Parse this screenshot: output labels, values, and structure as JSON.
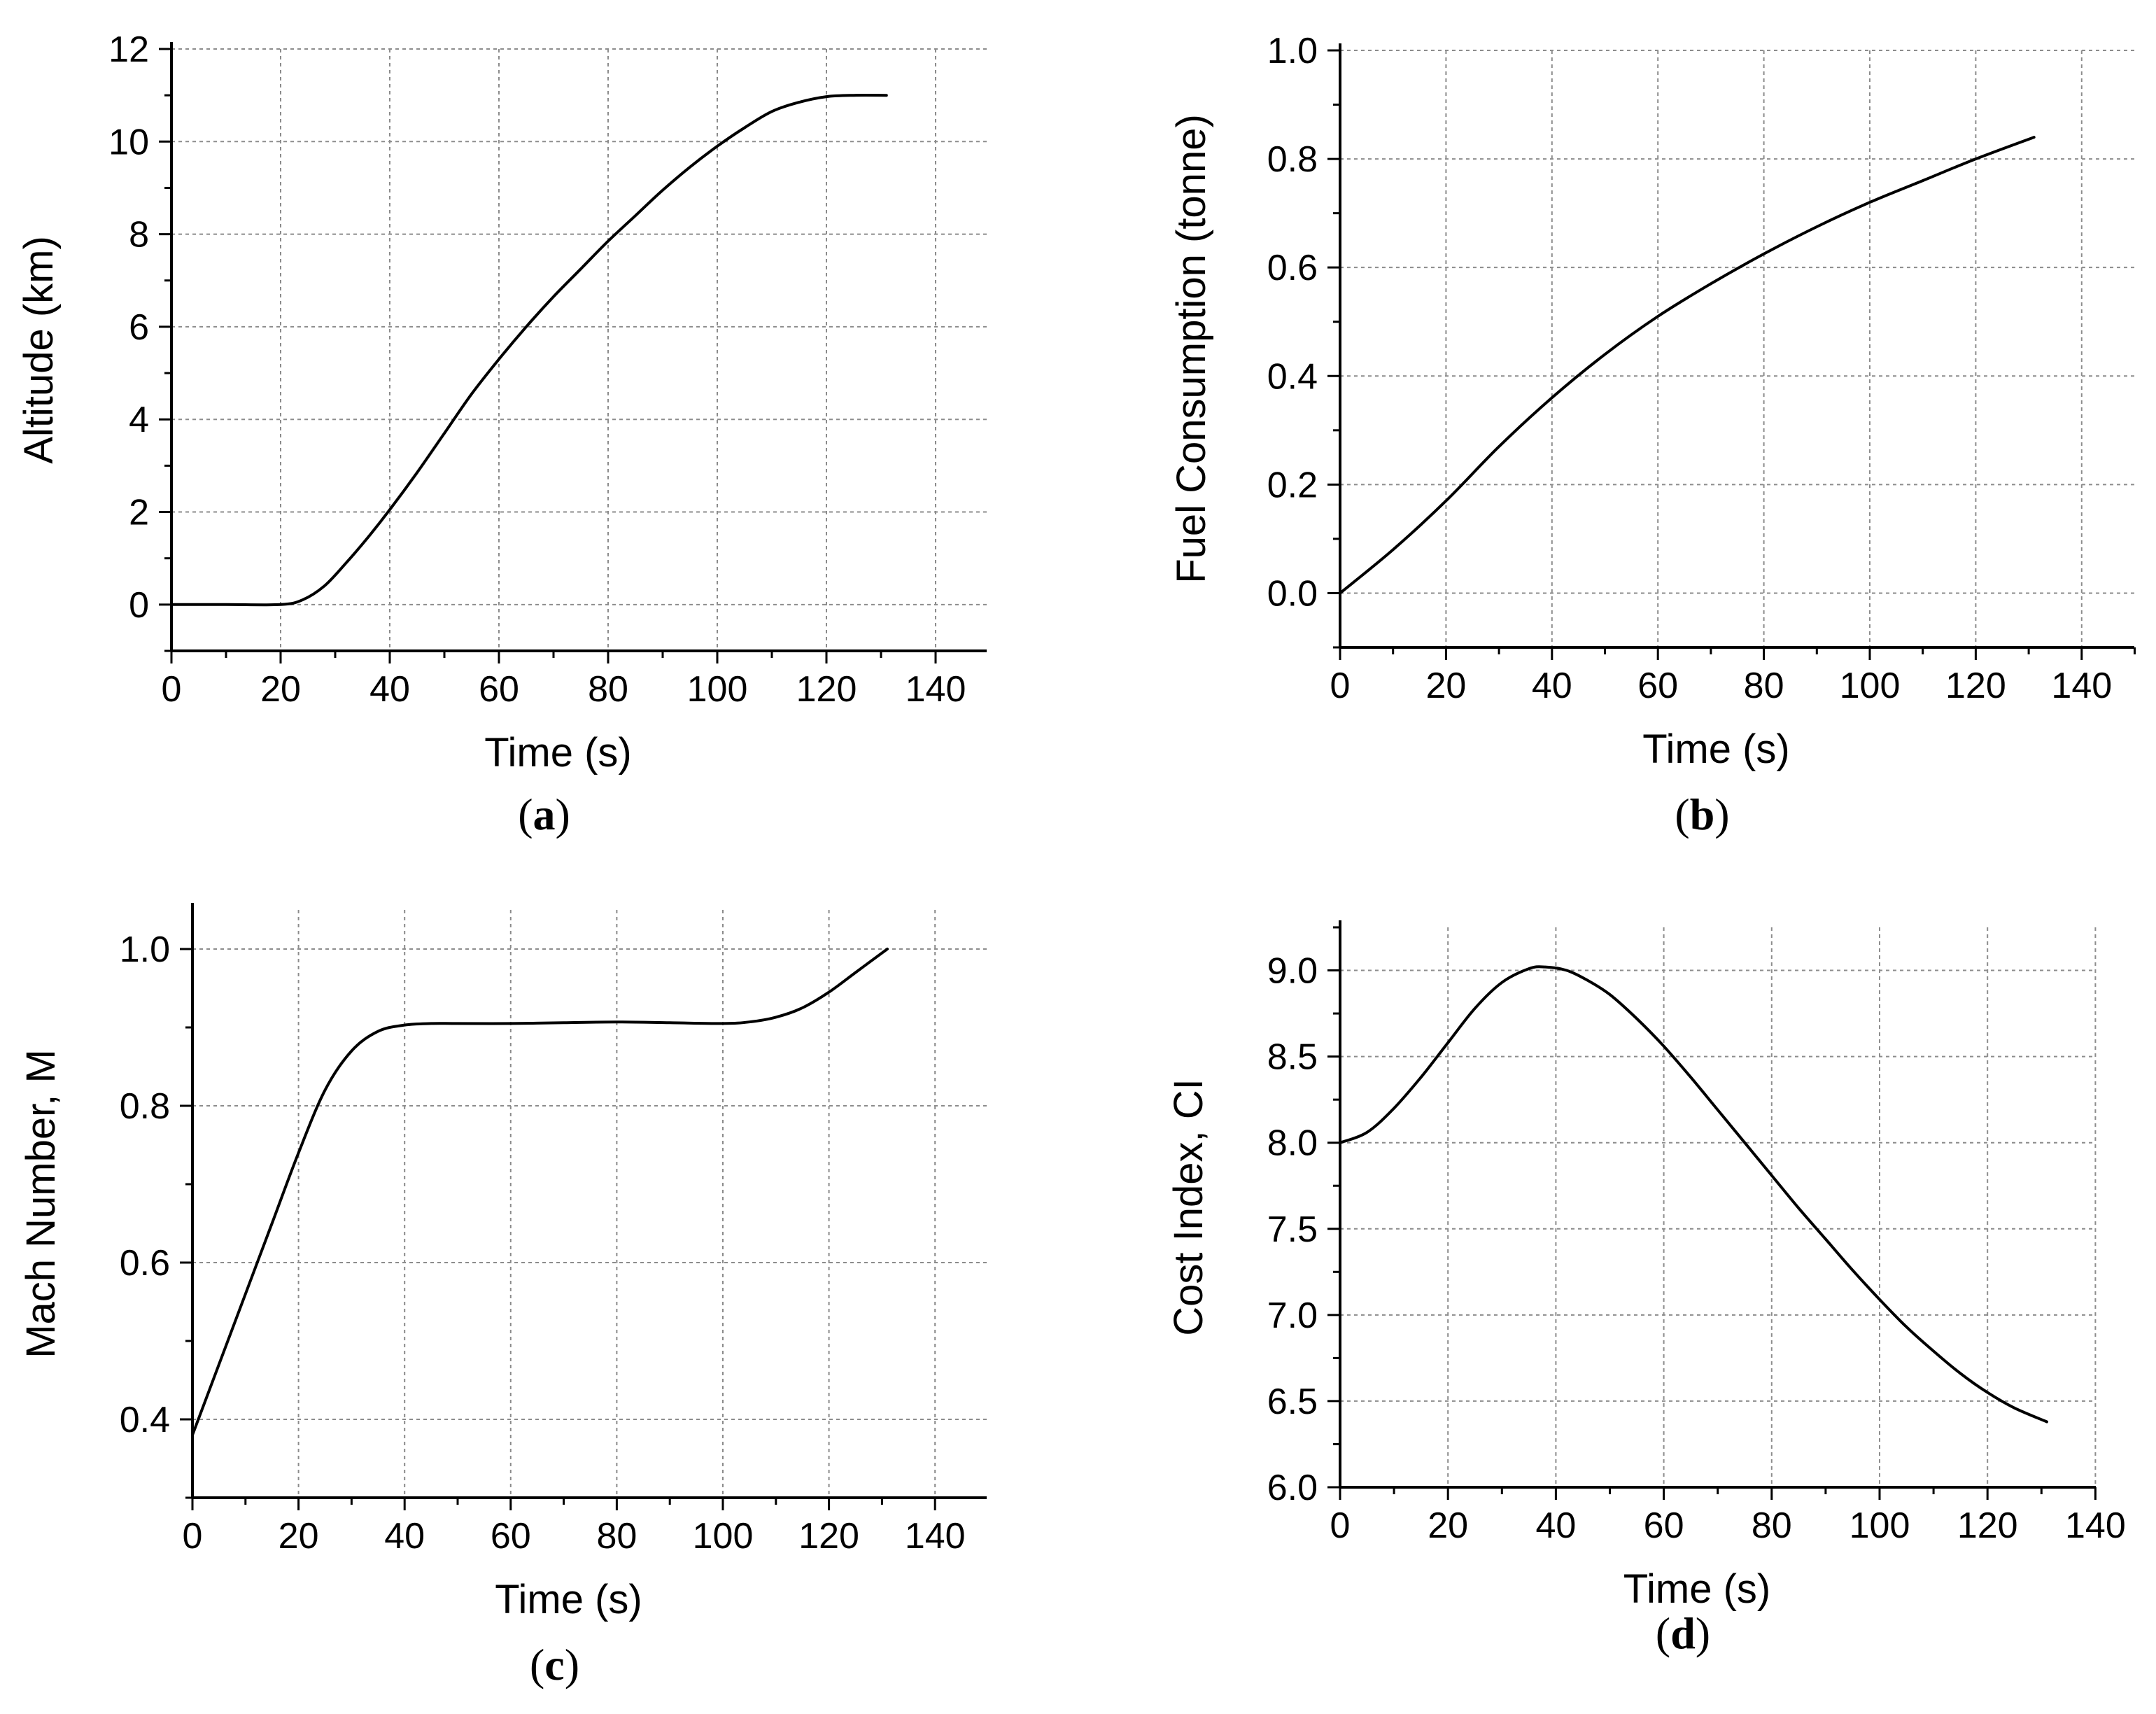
{
  "chart_data": [
    {
      "id": "a",
      "type": "line",
      "panel_label": "a",
      "title": "",
      "xlabel": "Time (s)",
      "ylabel": "Altitude (km)",
      "xlim": [
        0,
        150
      ],
      "ylim": [
        -1,
        12
      ],
      "xticks": [
        0,
        20,
        40,
        60,
        80,
        100,
        120,
        140
      ],
      "yticks": [
        0,
        2,
        4,
        6,
        8,
        10,
        12
      ],
      "xtick_labels": [
        "0",
        "20",
        "40",
        "60",
        "80",
        "100",
        "120",
        "140"
      ],
      "ytick_labels": [
        "0",
        "2",
        "4",
        "6",
        "8",
        "10",
        "12"
      ],
      "grid": true,
      "series": [
        {
          "name": "Altitude",
          "x": [
            0,
            10,
            20,
            24,
            28,
            32,
            36,
            40,
            45,
            50,
            55,
            60,
            65,
            70,
            75,
            80,
            85,
            90,
            95,
            100,
            105,
            110,
            115,
            120,
            125,
            131
          ],
          "y": [
            0,
            0,
            0,
            0.1,
            0.4,
            0.9,
            1.45,
            2.05,
            2.85,
            3.7,
            4.55,
            5.3,
            6.0,
            6.65,
            7.25,
            7.85,
            8.4,
            8.95,
            9.45,
            9.9,
            10.3,
            10.65,
            10.85,
            10.97,
            11.0,
            11.0
          ]
        }
      ]
    },
    {
      "id": "b",
      "type": "line",
      "panel_label": "b",
      "title": "",
      "xlabel": "Time (s)",
      "ylabel": "Fuel Consumption (tonne)",
      "xlim": [
        0,
        150
      ],
      "ylim": [
        -0.1,
        1.0
      ],
      "xticks": [
        0,
        20,
        40,
        60,
        80,
        100,
        120,
        140
      ],
      "yticks": [
        0.0,
        0.2,
        0.4,
        0.6,
        0.8,
        1.0
      ],
      "xtick_labels": [
        "0",
        "20",
        "40",
        "60",
        "80",
        "100",
        "120",
        "140"
      ],
      "ytick_labels": [
        "0.0",
        "0.2",
        "0.4",
        "0.6",
        "0.8",
        "1.0"
      ],
      "grid": true,
      "series": [
        {
          "name": "Fuel Consumption",
          "x": [
            0,
            10,
            20,
            30,
            40,
            50,
            60,
            70,
            80,
            90,
            100,
            110,
            120,
            131
          ],
          "y": [
            0.0,
            0.08,
            0.17,
            0.27,
            0.36,
            0.44,
            0.51,
            0.57,
            0.625,
            0.675,
            0.72,
            0.76,
            0.8,
            0.84
          ]
        }
      ]
    },
    {
      "id": "c",
      "type": "line",
      "panel_label": "c",
      "title": "",
      "xlabel": "Time (s)",
      "ylabel": "Mach Number, M",
      "xlim": [
        0,
        150
      ],
      "ylim": [
        0.3,
        1.05
      ],
      "xticks": [
        0,
        20,
        40,
        60,
        80,
        100,
        120,
        140
      ],
      "yticks": [
        0.4,
        0.6,
        0.8,
        1.0
      ],
      "xtick_labels": [
        "0",
        "20",
        "40",
        "60",
        "80",
        "100",
        "120",
        "140"
      ],
      "ytick_labels": [
        "0.4",
        "0.6",
        "0.8",
        "1.0"
      ],
      "grid": true,
      "series": [
        {
          "name": "Mach Number",
          "x": [
            0,
            5,
            10,
            15,
            20,
            25,
            30,
            35,
            40,
            45,
            50,
            60,
            70,
            80,
            90,
            100,
            105,
            110,
            115,
            120,
            125,
            131
          ],
          "y": [
            0.38,
            0.47,
            0.56,
            0.65,
            0.74,
            0.82,
            0.87,
            0.895,
            0.903,
            0.905,
            0.905,
            0.905,
            0.906,
            0.907,
            0.906,
            0.905,
            0.907,
            0.913,
            0.925,
            0.945,
            0.97,
            1.0
          ]
        }
      ]
    },
    {
      "id": "d",
      "type": "line",
      "panel_label": "d",
      "title": "",
      "xlabel": "Time (s)",
      "ylabel": "Cost Index, CI",
      "xlim": [
        0,
        140
      ],
      "ylim": [
        6.0,
        9.25
      ],
      "xticks": [
        0,
        20,
        40,
        60,
        80,
        100,
        120,
        140
      ],
      "yticks": [
        6.0,
        6.5,
        7.0,
        7.5,
        8.0,
        8.5,
        9.0
      ],
      "xtick_labels": [
        "0",
        "20",
        "40",
        "60",
        "80",
        "100",
        "120",
        "140"
      ],
      "ytick_labels": [
        "6.0",
        "6.5",
        "7.0",
        "7.5",
        "8.0",
        "8.5",
        "9.0"
      ],
      "grid": true,
      "series": [
        {
          "name": "Cost Index",
          "x": [
            0,
            5,
            10,
            15,
            20,
            25,
            30,
            35,
            38,
            42,
            46,
            50,
            55,
            60,
            65,
            70,
            75,
            80,
            85,
            90,
            95,
            100,
            105,
            110,
            115,
            120,
            125,
            131
          ],
          "y": [
            8.0,
            8.06,
            8.2,
            8.38,
            8.58,
            8.78,
            8.93,
            9.01,
            9.02,
            9.0,
            8.94,
            8.86,
            8.72,
            8.56,
            8.38,
            8.19,
            8.0,
            7.81,
            7.62,
            7.44,
            7.26,
            7.09,
            6.93,
            6.79,
            6.66,
            6.55,
            6.46,
            6.38
          ]
        }
      ]
    }
  ]
}
